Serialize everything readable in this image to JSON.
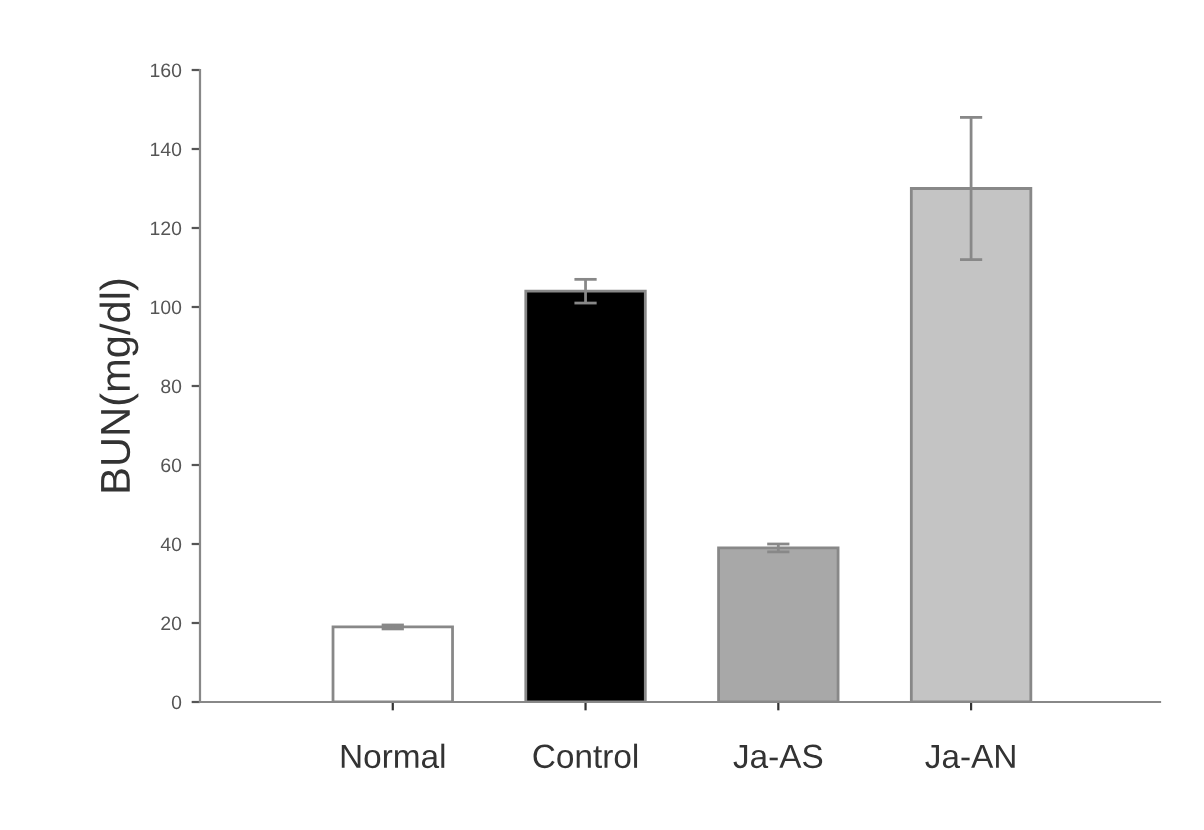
{
  "chart_data": {
    "type": "bar",
    "ylabel": "BUN(mg/dl)",
    "categories": [
      "Normal",
      "Control",
      "Ja-AS",
      "Ja-AN"
    ],
    "values": [
      19,
      104,
      39,
      130
    ],
    "errors": [
      0.5,
      3,
      1,
      18
    ],
    "colors": [
      "#ffffff",
      "#000000",
      "#a8a8a8",
      "#c4c4c4"
    ],
    "ylim": [
      0,
      160
    ],
    "yticks": [
      0,
      20,
      40,
      60,
      80,
      100,
      120,
      140,
      160
    ],
    "grid": false,
    "legend": false
  }
}
